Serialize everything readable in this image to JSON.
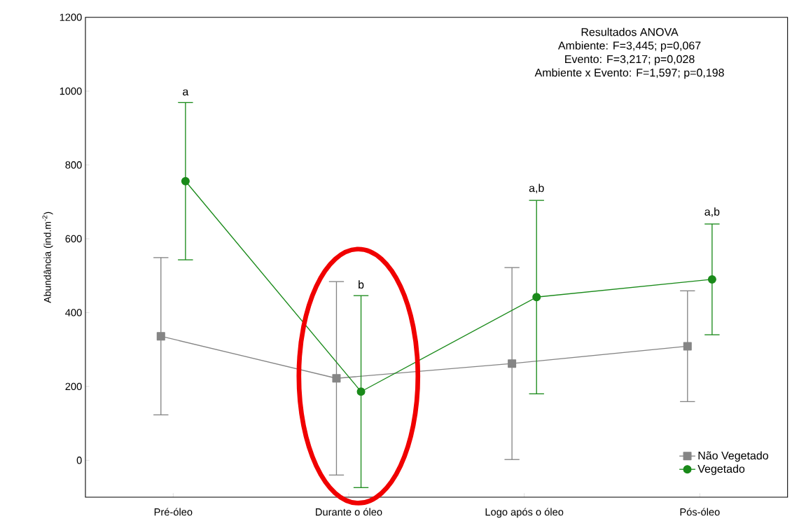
{
  "chart_data": {
    "type": "line",
    "ylabel": "Abundância (ind.m$^{-2}$)",
    "categories": [
      "Pré-óleo",
      "Durante o óleo",
      "Logo após o óleo",
      "Pós-óleo"
    ],
    "series": [
      {
        "name": "Não Vegetado",
        "color": "#858585",
        "marker": "square",
        "values": [
          336,
          222,
          262,
          309
        ],
        "errors": [
          213,
          262,
          260,
          150
        ]
      },
      {
        "name": "Vegetado",
        "color": "#1a8a1a",
        "marker": "circle",
        "values": [
          756,
          186,
          442,
          490
        ],
        "errors": [
          213,
          260,
          262,
          150
        ]
      }
    ],
    "ylim": [
      -100,
      1200
    ],
    "yticks": [
      0,
      200,
      400,
      600,
      800,
      1000,
      1200
    ],
    "grid": false,
    "legend": "bottom right",
    "line_style": "solid",
    "annotations": [
      "Resultados ANOVA",
      "Ambiente: F=3,445; p=0,067",
      "Evento: F=3,217; p=0,028",
      "Ambiente x Evento: F=1,597; p=0,198",
      "a",
      "b",
      "a,b",
      "a,b"
    ]
  }
}
